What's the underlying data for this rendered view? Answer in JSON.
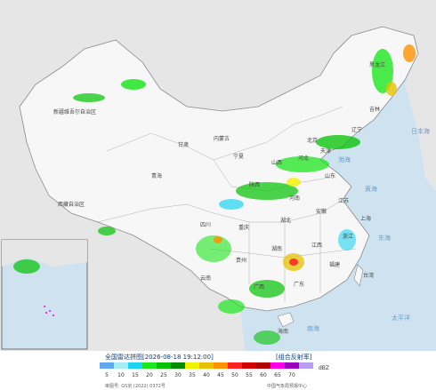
{
  "header": {
    "title": "全国雷达拼图",
    "time": "[2026-08-18 19:12:00]",
    "product": "[组合反射率]"
  },
  "legend": {
    "unit": "dBZ",
    "labels": [
      5,
      10,
      15,
      20,
      25,
      30,
      35,
      40,
      45,
      50,
      55,
      60,
      65,
      70
    ],
    "colors": [
      "#62a8f0",
      "#a6ecf6",
      "#1fd4f0",
      "#1ee61e",
      "#00c200",
      "#008c00",
      "#f2f200",
      "#e6c200",
      "#ff9000",
      "#ff2020",
      "#d40000",
      "#b00000",
      "#ff00e8",
      "#9a00c0",
      "#b89cf0"
    ]
  },
  "footer": {
    "approval": "审图号: GS京 (2022) 0372号",
    "source": "中国气象局预报中心"
  },
  "map": {
    "labels": [
      "新疆维吾尔自治区",
      "西藏自治区",
      "青海",
      "甘肃",
      "内蒙古",
      "黑龙江",
      "吉林",
      "辽宁",
      "北京",
      "天津",
      "河北",
      "山西",
      "陕西",
      "宁夏",
      "四川",
      "重庆",
      "湖北",
      "湖南",
      "河南",
      "山东",
      "江苏",
      "安徽",
      "浙江",
      "江西",
      "福建",
      "广东",
      "广西",
      "贵州",
      "云南",
      "海南",
      "台湾",
      "上海",
      "渤海",
      "黄海",
      "东海",
      "南海",
      "日本海",
      "太平洋"
    ]
  }
}
